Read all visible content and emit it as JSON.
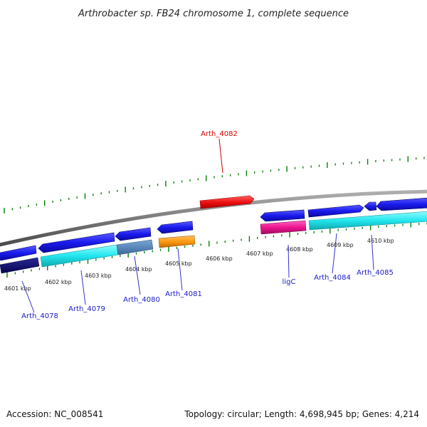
{
  "title": "Arthrobacter sp. FB24 chromosome 1, complete sequence",
  "accession": "Accession: NC_008541",
  "topology": "Topology: circular; Length: 4,698,945 bp; Genes: 4,214",
  "colors": {
    "backbone": "#888888",
    "tick": "#008000",
    "highlight_label": "#dd0000",
    "gene_label": "#1a1acc",
    "leader_line": "#3333cc",
    "leader_line_highlight": "#cc0000"
  },
  "kbp_labels": [
    "4601 kbp",
    "4602 kbp",
    "4603 kbp",
    "4604 kbp",
    "4605 kbp",
    "4606 kbp",
    "4607 kbp",
    "4608 kbp",
    "4609 kbp",
    "4610 kbp"
  ],
  "genes": [
    {
      "label": "Arth_4078",
      "strand": "+",
      "color": "#1a1acc",
      "highlight": false
    },
    {
      "label": "Arth_4079",
      "strand": "+",
      "color": "#1a1acc",
      "highlight": false
    },
    {
      "label": "Arth_4080",
      "strand": "-",
      "color": "#1a1acc",
      "highlight": false
    },
    {
      "label": "Arth_4081",
      "strand": "-",
      "color": "#1a1acc",
      "highlight": false
    },
    {
      "label": "Arth_4082",
      "strand": "+",
      "color": "#ee1111",
      "highlight": true
    },
    {
      "label": "ligC",
      "strand": "-",
      "color": "#1a1acc",
      "highlight": false
    },
    {
      "label": "Arth_4084",
      "strand": "+",
      "color": "#1a1acc",
      "highlight": false
    },
    {
      "label": "Arth_4085",
      "strand": "-",
      "color": "#1a1acc",
      "highlight": false
    }
  ]
}
